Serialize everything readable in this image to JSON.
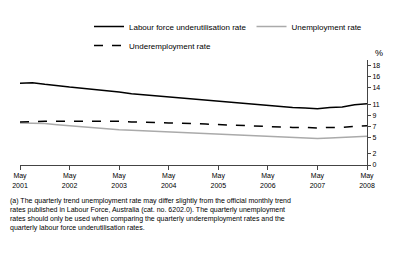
{
  "chart_data": {
    "type": "line",
    "ylabel": "%",
    "categories": [
      "May\n2001",
      null,
      null,
      null,
      "May\n2002",
      null,
      null,
      null,
      "May\n2003",
      null,
      null,
      null,
      "May\n2004",
      null,
      null,
      null,
      "May\n2005",
      null,
      null,
      null,
      "May\n2006",
      null,
      null,
      null,
      "May\n2007",
      null,
      null,
      null,
      "May\n2008"
    ],
    "series": [
      {
        "name": "Labour force underutilisation rate",
        "color": "#000000",
        "line_style": "solid",
        "values": [
          14.8,
          14.9,
          14.6,
          14.3,
          14.1,
          13.9,
          13.7,
          13.4,
          13.2,
          12.9,
          12.7,
          12.5,
          12.4,
          12.2,
          12.0,
          11.8,
          11.6,
          11.4,
          11.2,
          11.0,
          10.8,
          10.6,
          10.4,
          10.3,
          10.2,
          10.4,
          10.5,
          10.9,
          11.1
        ]
      },
      {
        "name": "Unemployment rate",
        "color": "#aaaaaa",
        "line_style": "solid",
        "values": [
          7.6,
          7.6,
          7.5,
          7.3,
          7.1,
          6.9,
          6.7,
          6.5,
          6.4,
          6.3,
          6.2,
          6.1,
          6.0,
          5.9,
          5.8,
          5.7,
          5.6,
          5.5,
          5.4,
          5.3,
          5.2,
          5.1,
          5.0,
          4.9,
          4.8,
          4.9,
          5.0,
          5.1,
          5.2
        ]
      },
      {
        "name": "Underemployment rate",
        "color": "#000000",
        "line_style": "dashed",
        "values": [
          7.8,
          7.9,
          7.9,
          7.9,
          7.9,
          8.0,
          8.0,
          7.9,
          7.9,
          7.8,
          7.8,
          7.7,
          7.6,
          7.6,
          7.5,
          7.4,
          7.3,
          7.2,
          7.1,
          7.0,
          7.0,
          6.9,
          6.8,
          6.8,
          6.7,
          6.8,
          6.8,
          7.0,
          7.1
        ]
      }
    ],
    "ylim": [
      0,
      19
    ],
    "yticks": [
      0,
      2,
      5,
      7,
      9,
      11,
      14,
      16,
      18
    ],
    "grid": false,
    "legend": "top",
    "footnote": "(a) The quarterly trend unemployment rate may differ slightly from the official monthly trend\nrates published in Labour Force, Australia (cat. no. 6202.0). The quarterly unemployment\nrates should only be used when comparing the quarterly underemployment rates and the\nquarterly labour force underutilisation rates."
  }
}
